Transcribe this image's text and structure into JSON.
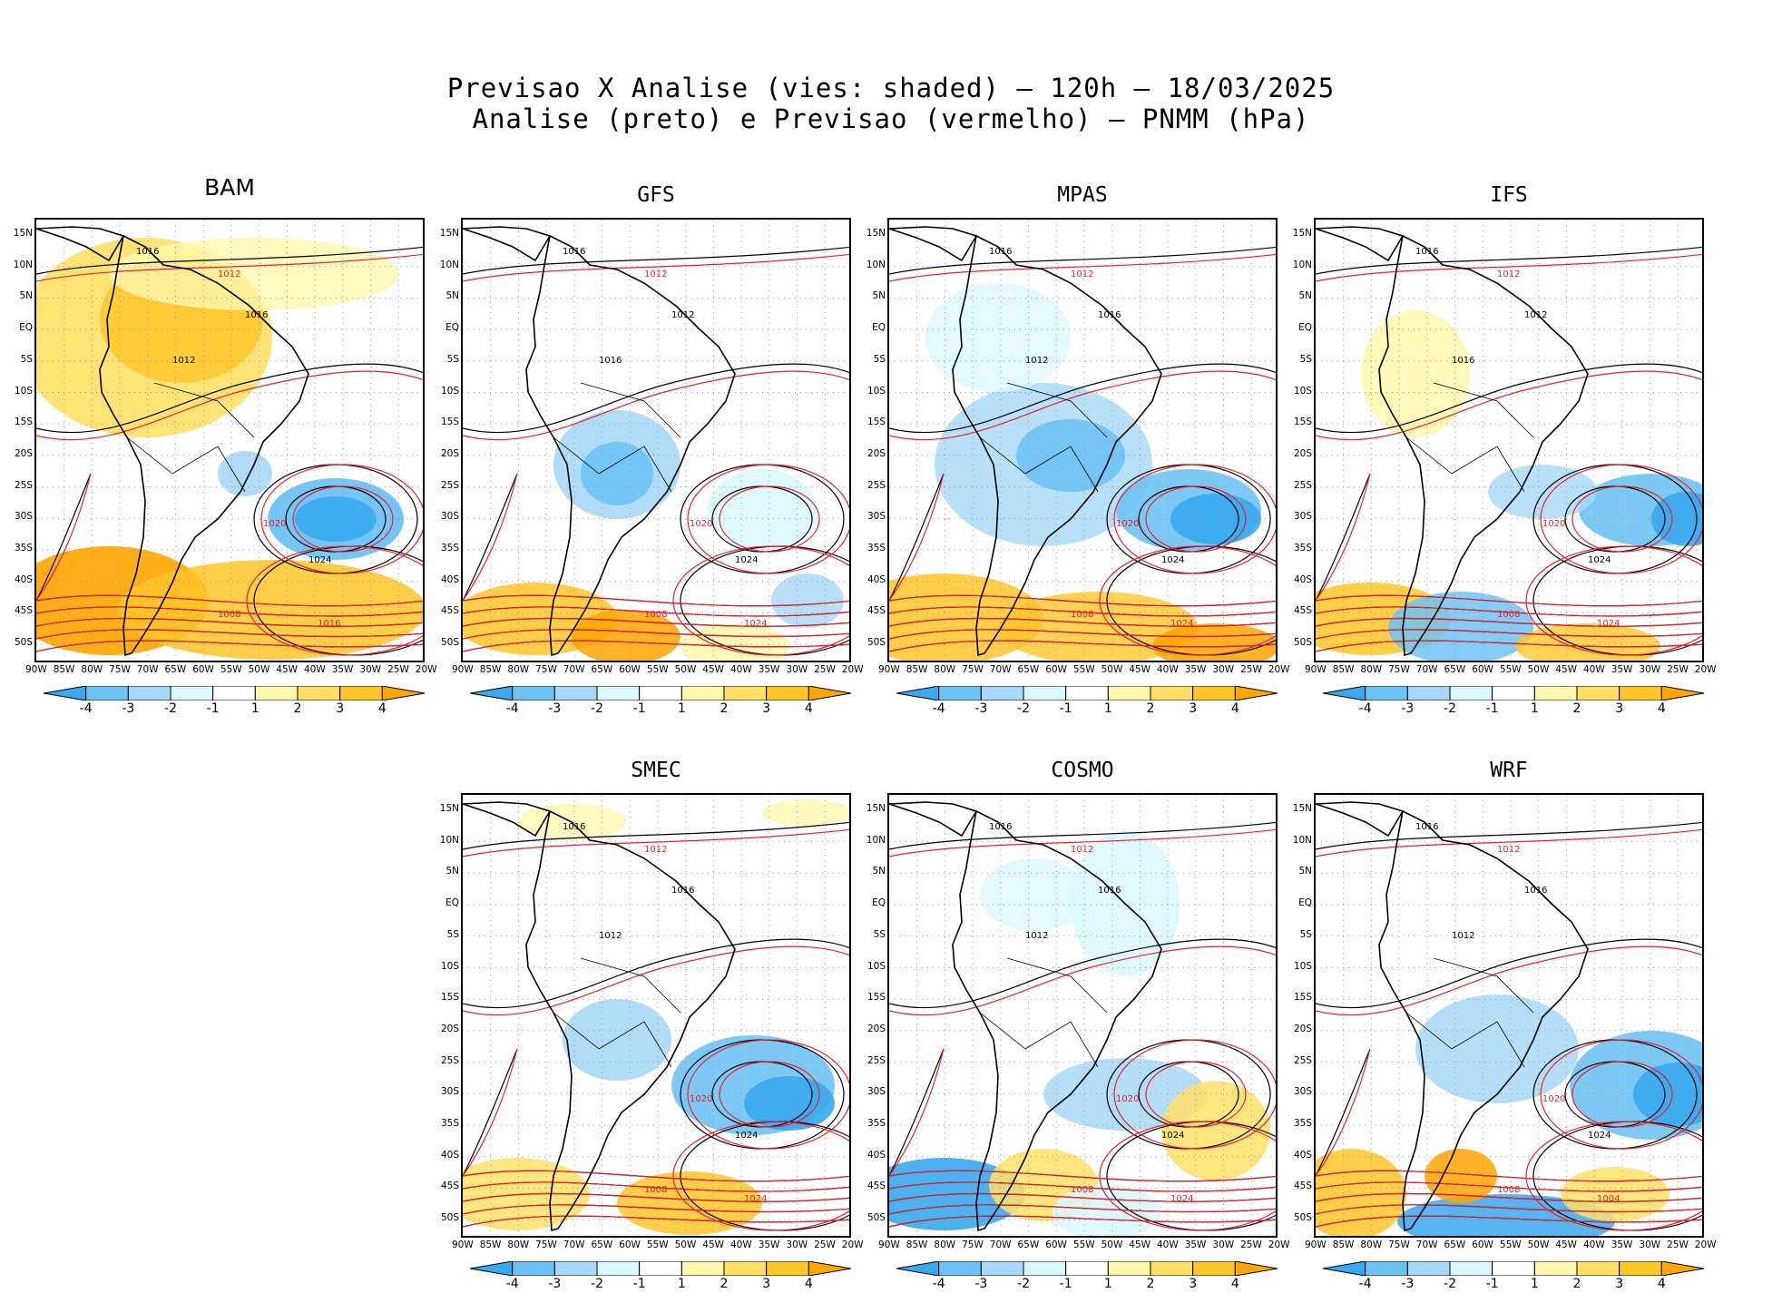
{
  "title": {
    "line1": "Previsao X Analise (vies: shaded) – 120h – 18/03/2025",
    "line2": "Analise (preto) e Previsao (vermelho) – PNMM (hPa)"
  },
  "lat_labels": [
    "15N",
    "10N",
    "5N",
    "EQ",
    "5S",
    "10S",
    "15S",
    "20S",
    "25S",
    "30S",
    "35S",
    "40S",
    "45S",
    "50S"
  ],
  "lon_labels": [
    "90W",
    "85W",
    "80W",
    "75W",
    "70W",
    "65W",
    "60W",
    "55W",
    "50W",
    "45W",
    "40W",
    "35W",
    "30W",
    "25W",
    "20W"
  ],
  "colorbar": {
    "labels": [
      "-4",
      "-3",
      "-2",
      "-1",
      "1",
      "2",
      "3",
      "4"
    ],
    "colors": [
      "#38a8f0",
      "#6ec3f5",
      "#a7d8f7",
      "#d9f7ff",
      "#ffffff",
      "#fff7b0",
      "#ffe066",
      "#ffc629",
      "#ffa500"
    ]
  },
  "line_colors": {
    "analysis": "#000000",
    "forecast": "#e8202a"
  },
  "panels": [
    {
      "name": "BAM",
      "labels": [
        "1016",
        "1012",
        "1016",
        "1020",
        "1024",
        "1008",
        "1012",
        "1016"
      ]
    },
    {
      "name": "GFS",
      "labels": [
        "1016",
        "1012",
        "1012",
        "1020",
        "1024",
        "1008",
        "1016",
        "1024"
      ]
    },
    {
      "name": "MPAS",
      "labels": [
        "1016",
        "1012",
        "1016",
        "1020",
        "1024",
        "1008",
        "1012",
        "1024"
      ]
    },
    {
      "name": "IFS",
      "labels": [
        "1016",
        "1012",
        "1012",
        "1020",
        "1024",
        "1008",
        "1016",
        "1024"
      ]
    },
    {
      "name": "SMEC",
      "labels": [
        "1016",
        "1012",
        "1016",
        "1020",
        "1024",
        "1008",
        "1012",
        "1024"
      ]
    },
    {
      "name": "COSMO",
      "labels": [
        "1016",
        "1012",
        "1016",
        "1020",
        "1024",
        "1008",
        "1012",
        "1024"
      ]
    },
    {
      "name": "WRF",
      "labels": [
        "1016",
        "1012",
        "1016",
        "1020",
        "1024",
        "1008",
        "1012",
        "1004"
      ]
    }
  ]
}
